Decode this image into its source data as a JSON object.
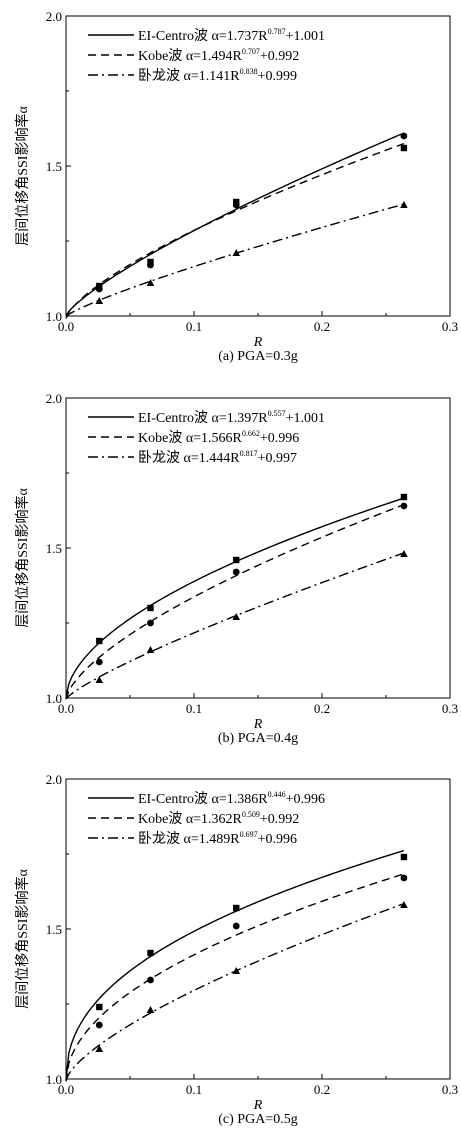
{
  "chart_data": [
    {
      "type": "scatter",
      "caption": "(a) PGA=0.3g",
      "xlabel": "R",
      "ylabel": "层间位移角SSI影响率α",
      "xlim": [
        0,
        0.3
      ],
      "ylim": [
        1.0,
        2.0
      ],
      "x_ticks": [
        "0.0",
        "0.1",
        "0.2",
        "0.3"
      ],
      "y_ticks": [
        "1.0",
        "1.5",
        "2.0"
      ],
      "legend_position": "top-left",
      "series": [
        {
          "name": "EI-Centro波",
          "formula": "α=1.737R^0.787+1.001",
          "line_style": "solid",
          "marker": "square",
          "fit": {
            "a": 1.737,
            "b": 0.787,
            "c": 1.001
          },
          "x": [
            0.026,
            0.066,
            0.133,
            0.264
          ],
          "y": [
            1.1,
            1.18,
            1.38,
            1.56
          ]
        },
        {
          "name": "Kobe波",
          "formula": "α=1.494R^0.707+0.992",
          "line_style": "dashed",
          "marker": "circle",
          "fit": {
            "a": 1.494,
            "b": 0.707,
            "c": 0.992
          },
          "x": [
            0.026,
            0.066,
            0.133,
            0.264
          ],
          "y": [
            1.09,
            1.17,
            1.37,
            1.6
          ]
        },
        {
          "name": "卧龙波",
          "formula": "α=1.141R^0.838+0.999",
          "line_style": "dashdot",
          "marker": "triangle",
          "fit": {
            "a": 1.141,
            "b": 0.838,
            "c": 0.999
          },
          "x": [
            0.026,
            0.066,
            0.133,
            0.264
          ],
          "y": [
            1.05,
            1.11,
            1.21,
            1.37
          ]
        }
      ]
    },
    {
      "type": "scatter",
      "caption": "(b) PGA=0.4g",
      "xlabel": "R",
      "ylabel": "层间位移角SSI影响率α",
      "xlim": [
        0,
        0.3
      ],
      "ylim": [
        1.0,
        2.0
      ],
      "x_ticks": [
        "0.0",
        "0.1",
        "0.2",
        "0.3"
      ],
      "y_ticks": [
        "1.0",
        "1.5",
        "2.0"
      ],
      "legend_position": "top-left",
      "series": [
        {
          "name": "EI-Centro波",
          "formula": "α=1.397R^0.557+1.001",
          "line_style": "solid",
          "marker": "square",
          "fit": {
            "a": 1.397,
            "b": 0.557,
            "c": 1.001
          },
          "x": [
            0.026,
            0.066,
            0.133,
            0.264
          ],
          "y": [
            1.19,
            1.3,
            1.46,
            1.67
          ]
        },
        {
          "name": "Kobe波",
          "formula": "α=1.566R^0.662+0.996",
          "line_style": "dashed",
          "marker": "circle",
          "fit": {
            "a": 1.566,
            "b": 0.662,
            "c": 0.996
          },
          "x": [
            0.026,
            0.066,
            0.133,
            0.264
          ],
          "y": [
            1.12,
            1.25,
            1.42,
            1.64
          ]
        },
        {
          "name": "卧龙波",
          "formula": "α=1.444R^0.817+0.997",
          "line_style": "dashdot",
          "marker": "triangle",
          "fit": {
            "a": 1.444,
            "b": 0.817,
            "c": 0.997
          },
          "x": [
            0.026,
            0.066,
            0.133,
            0.264
          ],
          "y": [
            1.06,
            1.16,
            1.27,
            1.48
          ]
        }
      ]
    },
    {
      "type": "scatter",
      "caption": "(c) PGA=0.5g",
      "xlabel": "R",
      "ylabel": "层间位移角SSI影响率α",
      "xlim": [
        0,
        0.3
      ],
      "ylim": [
        1.0,
        2.0
      ],
      "x_ticks": [
        "0.0",
        "0.1",
        "0.2",
        "0.3"
      ],
      "y_ticks": [
        "1.0",
        "1.5",
        "2.0"
      ],
      "legend_position": "top-left",
      "series": [
        {
          "name": "EI-Centro波",
          "formula": "α=1.386R^0.446+0.996",
          "line_style": "solid",
          "marker": "square",
          "fit": {
            "a": 1.386,
            "b": 0.446,
            "c": 0.996
          },
          "x": [
            0.026,
            0.066,
            0.133,
            0.264
          ],
          "y": [
            1.24,
            1.42,
            1.57,
            1.74
          ]
        },
        {
          "name": "Kobe波",
          "formula": "α=1.362R^0.509+0.992",
          "line_style": "dashed",
          "marker": "circle",
          "fit": {
            "a": 1.362,
            "b": 0.509,
            "c": 0.992
          },
          "x": [
            0.026,
            0.066,
            0.133,
            0.264
          ],
          "y": [
            1.18,
            1.33,
            1.51,
            1.67
          ]
        },
        {
          "name": "卧龙波",
          "formula": "α=1.489R^0.697+0.996",
          "line_style": "dashdot",
          "marker": "triangle",
          "fit": {
            "a": 1.489,
            "b": 0.697,
            "c": 0.996
          },
          "x": [
            0.026,
            0.066,
            0.133,
            0.264
          ],
          "y": [
            1.1,
            1.23,
            1.36,
            1.58
          ]
        }
      ]
    }
  ]
}
